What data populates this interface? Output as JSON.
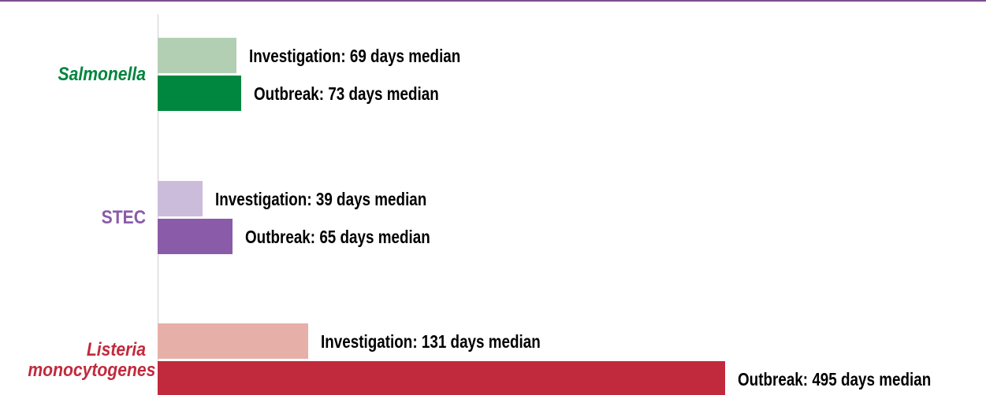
{
  "chart_data": {
    "type": "bar",
    "orientation": "horizontal",
    "categories": [
      "Salmonella",
      "STEC",
      "Listeria monocytogenes"
    ],
    "category_colors": [
      "#00843d",
      "#8a5ba8",
      "#c12a3c"
    ],
    "category_italic": [
      true,
      false,
      true
    ],
    "series": [
      {
        "colors": [
          "#b3cfb3",
          "#cbbcdc",
          "#e6b0a8"
        ],
        "values": [
          69,
          39,
          131
        ],
        "value_labels": [
          "Investigation: 69 days median",
          "Investigation: 39 days median",
          "Investigation: 131 days median"
        ]
      },
      {
        "colors": [
          "#00873f",
          "#8a5ba8",
          "#c1293c"
        ],
        "values": [
          73,
          65,
          495
        ],
        "value_labels": [
          "Outbreak: 73 days median",
          "Outbreak: 65 days median",
          "Outbreak: 495 days median"
        ]
      }
    ],
    "xlim": [
      0,
      495
    ]
  }
}
